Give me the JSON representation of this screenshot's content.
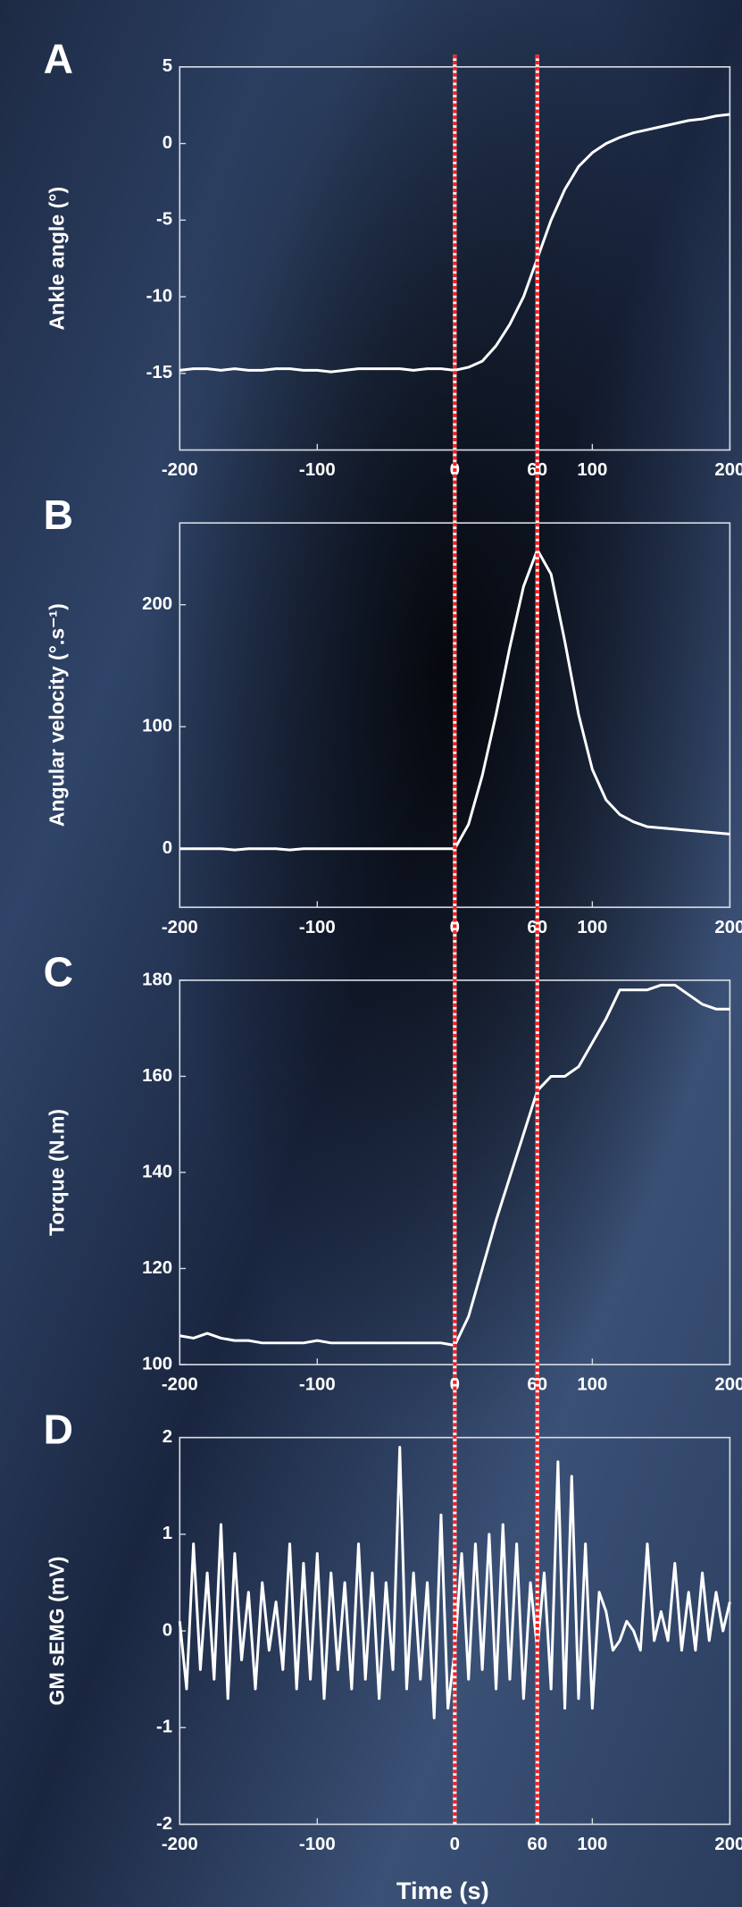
{
  "chart_data": [
    {
      "type": "line",
      "label": "A",
      "ylabel": "Ankle angle (°)",
      "color": "#ffffff",
      "x": [
        -200,
        -190,
        -180,
        -170,
        -160,
        -150,
        -140,
        -130,
        -120,
        -110,
        -100,
        -90,
        -80,
        -70,
        -60,
        -50,
        -40,
        -30,
        -20,
        -10,
        0,
        10,
        20,
        30,
        40,
        50,
        60,
        70,
        80,
        90,
        100,
        110,
        120,
        130,
        140,
        150,
        160,
        170,
        180,
        190,
        200
      ],
      "values": [
        -14.8,
        -14.7,
        -14.7,
        -14.8,
        -14.7,
        -14.8,
        -14.8,
        -14.7,
        -14.7,
        -14.8,
        -14.8,
        -14.9,
        -14.8,
        -14.7,
        -14.7,
        -14.7,
        -14.7,
        -14.8,
        -14.7,
        -14.7,
        -14.8,
        -14.6,
        -14.2,
        -13.2,
        -11.8,
        -10,
        -7.5,
        -5,
        -3,
        -1.5,
        -0.6,
        0,
        0.4,
        0.7,
        0.9,
        1.1,
        1.3,
        1.5,
        1.6,
        1.8,
        1.9
      ],
      "xlim": [
        -200,
        200
      ],
      "xticks": [
        -200,
        -100,
        0,
        60,
        100,
        200
      ],
      "ylim": [
        -20,
        5
      ],
      "yticks": [
        -15,
        -10,
        -5,
        0,
        5
      ],
      "vlines": [
        0,
        60
      ],
      "vline_color": "#ff2020"
    },
    {
      "type": "line",
      "label": "B",
      "ylabel": "Angular velocity (°.s⁻¹)",
      "color": "#ffffff",
      "x": [
        -200,
        -190,
        -180,
        -170,
        -160,
        -150,
        -140,
        -130,
        -120,
        -110,
        -100,
        -90,
        -80,
        -70,
        -60,
        -50,
        -40,
        -30,
        -20,
        -10,
        0,
        10,
        20,
        30,
        40,
        50,
        60,
        70,
        80,
        90,
        100,
        110,
        120,
        130,
        140,
        150,
        160,
        170,
        180,
        190,
        200
      ],
      "values": [
        0,
        0,
        0,
        0,
        -1,
        0,
        0,
        0,
        -1,
        0,
        0,
        0,
        0,
        0,
        0,
        0,
        0,
        0,
        0,
        0,
        0,
        20,
        60,
        110,
        165,
        215,
        245,
        225,
        170,
        110,
        65,
        40,
        28,
        22,
        18,
        17,
        16,
        15,
        14,
        13,
        12
      ],
      "xlim": [
        -200,
        200
      ],
      "xticks": [
        -200,
        -100,
        0,
        60,
        100,
        200
      ],
      "ylim": [
        -48,
        267
      ],
      "yticks": [
        0,
        100,
        200
      ]
    },
    {
      "type": "line",
      "label": "C",
      "ylabel": "Torque (N.m)",
      "color": "#ffffff",
      "x": [
        -200,
        -190,
        -180,
        -170,
        -160,
        -150,
        -140,
        -130,
        -120,
        -110,
        -100,
        -90,
        -80,
        -70,
        -60,
        -50,
        -40,
        -30,
        -20,
        -10,
        0,
        10,
        20,
        30,
        40,
        50,
        60,
        70,
        80,
        90,
        100,
        110,
        120,
        130,
        140,
        150,
        160,
        170,
        180,
        190,
        200
      ],
      "values": [
        106,
        105.5,
        106.5,
        105.5,
        105,
        105,
        104.5,
        104.5,
        104.5,
        104.5,
        105,
        104.5,
        104.5,
        104.5,
        104.5,
        104.5,
        104.5,
        104.5,
        104.5,
        104.5,
        104,
        110,
        120,
        130,
        139,
        148,
        157,
        160,
        160,
        162,
        167,
        172,
        178,
        178,
        178,
        179,
        179,
        177,
        175,
        174,
        174
      ],
      "xlim": [
        -200,
        200
      ],
      "xticks": [
        -200,
        -100,
        0,
        60,
        100,
        200
      ],
      "ylim": [
        100,
        180
      ],
      "yticks": [
        100,
        120,
        140,
        160,
        180
      ]
    },
    {
      "type": "line",
      "label": "D",
      "ylabel": "GM sEMG (mV)",
      "xlabel": "Time (s)",
      "color": "#ffffff",
      "x": [
        -200,
        -195,
        -190,
        -185,
        -180,
        -175,
        -170,
        -165,
        -160,
        -155,
        -150,
        -145,
        -140,
        -135,
        -130,
        -125,
        -120,
        -115,
        -110,
        -105,
        -100,
        -95,
        -90,
        -85,
        -80,
        -75,
        -70,
        -65,
        -60,
        -55,
        -50,
        -45,
        -40,
        -35,
        -30,
        -25,
        -20,
        -15,
        -10,
        -5,
        0,
        5,
        10,
        15,
        20,
        25,
        30,
        35,
        40,
        45,
        50,
        55,
        60,
        65,
        70,
        75,
        80,
        85,
        90,
        95,
        100,
        105,
        110,
        115,
        120,
        125,
        130,
        135,
        140,
        145,
        150,
        155,
        160,
        165,
        170,
        175,
        180,
        185,
        190,
        195,
        200
      ],
      "values": [
        0.1,
        -0.6,
        0.9,
        -0.4,
        0.6,
        -0.5,
        1.1,
        -0.7,
        0.8,
        -0.3,
        0.4,
        -0.6,
        0.5,
        -0.2,
        0.3,
        -0.4,
        0.9,
        -0.6,
        0.7,
        -0.5,
        0.8,
        -0.7,
        0.6,
        -0.4,
        0.5,
        -0.6,
        0.9,
        -0.5,
        0.6,
        -0.7,
        0.5,
        -0.4,
        1.9,
        -0.6,
        0.6,
        -0.5,
        0.5,
        -0.9,
        1.2,
        -0.8,
        -0.2,
        0.8,
        -0.5,
        0.9,
        -0.4,
        1.0,
        -0.6,
        1.1,
        -0.5,
        0.9,
        -0.7,
        0.5,
        -0.2,
        0.6,
        -0.6,
        1.75,
        -0.8,
        1.6,
        -0.7,
        0.9,
        -0.8,
        0.4,
        0.2,
        -0.2,
        -0.1,
        0.1,
        0.0,
        -0.2,
        0.9,
        -0.1,
        0.2,
        -0.1,
        0.7,
        -0.2,
        0.4,
        -0.2,
        0.6,
        -0.1,
        0.4,
        0.0,
        0.3
      ],
      "xlim": [
        -200,
        200
      ],
      "xticks": [
        -200,
        -100,
        0,
        60,
        100,
        200
      ],
      "ylim": [
        -2,
        2
      ],
      "yticks": [
        -2,
        -1,
        0,
        1,
        2
      ]
    }
  ]
}
